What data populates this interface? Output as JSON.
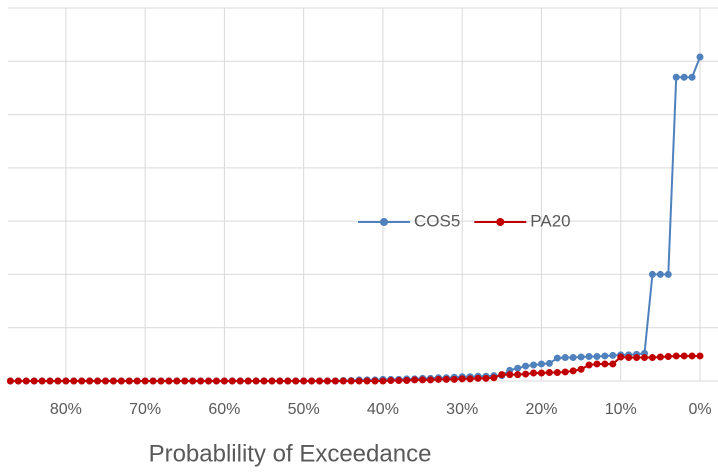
{
  "chart_data": {
    "type": "line",
    "x_label": "Probablility of Exceedance",
    "x": [
      87,
      86,
      85,
      84,
      83,
      82,
      81,
      80,
      79,
      78,
      77,
      76,
      75,
      74,
      73,
      72,
      71,
      70,
      69,
      68,
      67,
      66,
      65,
      64,
      63,
      62,
      61,
      60,
      59,
      58,
      57,
      56,
      55,
      54,
      53,
      52,
      51,
      50,
      49,
      48,
      47,
      46,
      45,
      44,
      43,
      42,
      41,
      40,
      39,
      38,
      37,
      36,
      35,
      34,
      33,
      32,
      31,
      30,
      29,
      28,
      27,
      26,
      25,
      24,
      23,
      22,
      21,
      20,
      19,
      18,
      17,
      16,
      15,
      14,
      13,
      12,
      11,
      10,
      9,
      8,
      7,
      6,
      5,
      4,
      3,
      2,
      1,
      0
    ],
    "series": [
      {
        "name": "COS5",
        "color": "#4f81bd",
        "values": [
          0,
          0,
          0,
          0,
          0,
          0,
          0,
          0,
          0,
          0,
          0,
          0,
          0,
          0,
          0,
          0,
          0,
          0,
          0,
          0,
          0,
          0,
          0,
          0,
          0,
          0,
          0,
          0,
          0,
          0,
          0,
          0,
          0,
          0,
          0,
          0,
          0,
          0,
          0,
          0,
          0,
          0,
          0.01,
          0.01,
          0.02,
          0.02,
          0.02,
          0.03,
          0.03,
          0.03,
          0.04,
          0.04,
          0.05,
          0.05,
          0.06,
          0.06,
          0.07,
          0.08,
          0.08,
          0.09,
          0.09,
          0.1,
          0.1,
          0.2,
          0.24,
          0.28,
          0.3,
          0.32,
          0.33,
          0.43,
          0.44,
          0.44,
          0.45,
          0.46,
          0.46,
          0.47,
          0.48,
          0.49,
          0.49,
          0.5,
          0.52,
          2.0,
          2.0,
          2.0,
          5.7,
          5.7,
          5.7,
          6.08
        ]
      },
      {
        "name": "PA20",
        "color": "#c00000",
        "values": [
          0,
          0,
          0,
          0,
          0,
          0,
          0,
          0,
          0,
          0,
          0,
          0,
          0,
          0,
          0,
          0,
          0,
          0,
          0,
          0,
          0,
          0,
          0,
          0,
          0,
          0,
          0,
          0,
          0,
          0,
          0,
          0,
          0,
          0,
          0,
          0,
          0,
          0,
          0,
          0,
          0,
          0,
          0,
          0,
          0,
          0,
          0,
          0,
          0.01,
          0.01,
          0.01,
          0.02,
          0.02,
          0.02,
          0.03,
          0.03,
          0.03,
          0.04,
          0.04,
          0.05,
          0.05,
          0.06,
          0.12,
          0.12,
          0.12,
          0.13,
          0.15,
          0.15,
          0.16,
          0.16,
          0.17,
          0.19,
          0.22,
          0.3,
          0.32,
          0.32,
          0.32,
          0.45,
          0.44,
          0.44,
          0.44,
          0.44,
          0.45,
          0.46,
          0.47,
          0.47,
          0.47,
          0.47
        ]
      }
    ],
    "xlim": [
      87.3,
      0
    ],
    "xticks": [
      {
        "value": 80,
        "label": "80%"
      },
      {
        "value": 70,
        "label": "70%"
      },
      {
        "value": 60,
        "label": "60%"
      },
      {
        "value": 50,
        "label": "50%"
      },
      {
        "value": 40,
        "label": "40%"
      },
      {
        "value": 30,
        "label": "30%"
      },
      {
        "value": 20,
        "label": "20%"
      },
      {
        "value": 10,
        "label": "10%"
      },
      {
        "value": 0,
        "label": "0%"
      }
    ],
    "ylim": [
      0,
      7
    ],
    "yticks": [
      0,
      1,
      2,
      3,
      4,
      5,
      6,
      7
    ],
    "grid": true,
    "legend": "right"
  }
}
